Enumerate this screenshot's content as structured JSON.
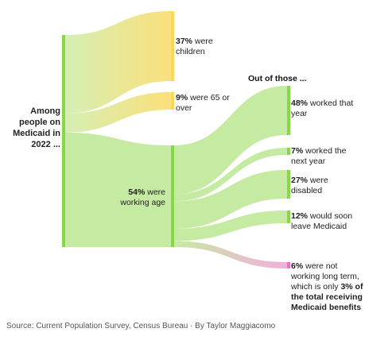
{
  "root_label": "Among people on Medicaid in 2022 ...",
  "subheading": "Out of those ...",
  "first_split": [
    {
      "id": "children",
      "percent": 37,
      "pct_text": "37%",
      "rest": " were children",
      "color": "#fbd75b"
    },
    {
      "id": "seniors",
      "percent": 9,
      "pct_text": "9%",
      "rest": " were 65 or over",
      "color": "#fbd75b"
    },
    {
      "id": "working-age",
      "percent": 54,
      "pct_text": "54%",
      "rest": " were working age",
      "color": "#8ad64b"
    }
  ],
  "working_age_split": [
    {
      "id": "worked-that-year",
      "percent": 48,
      "pct_text": "48%",
      "rest": " worked that year",
      "color": "#8ad64b"
    },
    {
      "id": "worked-next-year",
      "percent": 7,
      "pct_text": "7%",
      "rest": " worked the next year",
      "color": "#8ad64b"
    },
    {
      "id": "disabled",
      "percent": 27,
      "pct_text": "27%",
      "rest": " were disabled",
      "color": "#8ad64b"
    },
    {
      "id": "leave-medicaid",
      "percent": 12,
      "pct_text": "12%",
      "rest": " would soon leave Medicaid",
      "color": "#8ad64b"
    },
    {
      "id": "not-working",
      "percent": 6,
      "pct_text": "6%",
      "rest": " were not working long term, which is only ",
      "emph": "3% of the total receiving Medicaid benefits",
      "color": "#ee6fc7"
    }
  ],
  "source": "Source: Current Population Survey, Census Bureau   ·   By Taylor Maggiacomo",
  "colors": {
    "green": "#8ad64b",
    "green_light": "#c8eba4",
    "yellow": "#fbd75b",
    "yellow_light": "#f6edb0",
    "pink": "#ee6fc7"
  }
}
